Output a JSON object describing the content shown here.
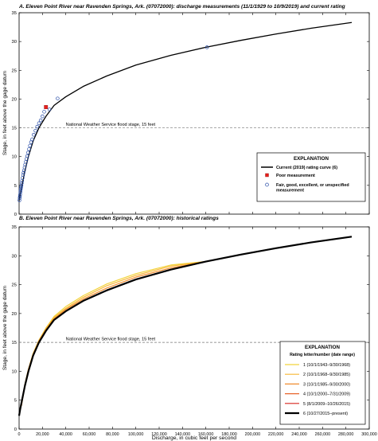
{
  "xlabel": "Discharge, in cubic feet per second",
  "ylabel": "Stage, in feet above the gage datum",
  "x_ticks": [
    0,
    20000,
    40000,
    60000,
    80000,
    100000,
    120000,
    140000,
    160000,
    180000,
    200000,
    220000,
    240000,
    260000,
    280000,
    300000
  ],
  "x_tick_labels": [
    "0",
    "20,000",
    "40,000",
    "60,000",
    "80,000",
    "100,000",
    "120,000",
    "140,000",
    "160,000",
    "180,000",
    "200,000",
    "220,000",
    "240,000",
    "260,000",
    "280,000",
    "300,000"
  ],
  "y_ticks": [
    0,
    5,
    10,
    15,
    20,
    25,
    30,
    35
  ],
  "y_tick_labels": [
    "0",
    "5",
    "10",
    "15",
    "20",
    "25",
    "30",
    "35"
  ],
  "chart_data": [
    {
      "type": "scatter",
      "title": "A. Eleven Point River near Ravenden Springs, Ark. (07072000): discharge measurements (11/1/1929 to 10/9/2019) and current rating",
      "xlabel": "",
      "ylabel": "Stage, in feet above the gage datum",
      "xlim": [
        0,
        300000
      ],
      "ylim": [
        0,
        35
      ],
      "grid": false,
      "legend_position": "lower-right",
      "legend_title": "EXPLANATION",
      "flood_stage": {
        "value": 15,
        "label": "National Weather Service flood stage, 15 feet"
      },
      "series": [
        {
          "name": "Current (2019) rating curve (6)",
          "kind": "line",
          "color": "#000000",
          "x": [
            0,
            1000,
            2500,
            5000,
            8000,
            12000,
            17000,
            23000,
            30000,
            40000,
            55000,
            75000,
            100000,
            130000,
            160000,
            190000,
            220000,
            250000,
            285000
          ],
          "y": [
            2.3,
            3.5,
            5,
            7.5,
            10,
            12.7,
            15,
            17,
            18.9,
            20.4,
            22.2,
            24,
            25.9,
            27.6,
            29,
            30.2,
            31.3,
            32.3,
            33.3
          ]
        },
        {
          "name": "Poor measurement",
          "kind": "point",
          "color": "#e8201c",
          "x": [
            23000
          ],
          "y": [
            18.6
          ]
        },
        {
          "name": "Fair, good, excellent, or unspecified measurement",
          "kind": "point",
          "color": "#2b4fa8",
          "x": [
            300,
            500,
            700,
            900,
            1100,
            1300,
            1500,
            1700,
            2000,
            2300,
            2600,
            3000,
            3400,
            3800,
            4200,
            4700,
            5200,
            5800,
            6400,
            7000,
            7700,
            8500,
            9300,
            10200,
            11200,
            12500,
            14000,
            15500,
            17000,
            18500,
            20000,
            21500,
            26000,
            33000,
            161000
          ],
          "y": [
            2.4,
            2.8,
            3.1,
            3.4,
            3.8,
            4.1,
            4.4,
            4.7,
            5.0,
            5.4,
            5.8,
            6.3,
            6.8,
            7.2,
            7.6,
            8.1,
            8.6,
            9.1,
            9.6,
            10.1,
            10.7,
            11.3,
            11.9,
            12.5,
            13.0,
            13.8,
            14.5,
            15.2,
            15.8,
            16.3,
            17.0,
            17.8,
            18.2,
            20.1,
            29.0
          ]
        }
      ]
    },
    {
      "type": "line",
      "title": "B. Eleven Point River near Ravenden Springs, Ark. (07072000): historical ratings",
      "xlabel": "Discharge, in cubic feet per second",
      "ylabel": "Stage, in feet above the gage datum",
      "xlim": [
        0,
        300000
      ],
      "ylim": [
        0,
        35
      ],
      "grid": false,
      "legend_position": "lower-right",
      "legend_title": "EXPLANATION",
      "legend_subtitle": "Rating letter/number (date range)",
      "flood_stage": {
        "value": 15,
        "label": "National Weather Service flood stage, 15 feet"
      },
      "series": [
        {
          "name": "1 (10/1/1943–9/30/1968)",
          "color": "#f2d43c",
          "width": 1.2,
          "x": [
            2000,
            5000,
            8000,
            12000,
            17000,
            23000,
            30000,
            40000,
            55000,
            75000,
            100000,
            130000,
            160000
          ],
          "y": [
            4.2,
            7.8,
            10.4,
            13.1,
            15.4,
            17.5,
            19.5,
            21.2,
            23.1,
            25.1,
            26.9,
            28.4,
            29.0
          ]
        },
        {
          "name": "2 (10/1/1968–9/30/1985)",
          "color": "#f7b733",
          "width": 1.2,
          "x": [
            2000,
            5000,
            8000,
            12000,
            17000,
            23000,
            30000,
            40000,
            55000,
            75000,
            100000,
            130000,
            160000
          ],
          "y": [
            4.1,
            7.7,
            10.3,
            13.0,
            15.3,
            17.4,
            19.3,
            20.9,
            22.8,
            24.8,
            26.6,
            28.2,
            29.0
          ]
        },
        {
          "name": "3 (10/1/1985–9/30/2000)",
          "color": "#f08c2e",
          "width": 1.2,
          "x": [
            2000,
            5000,
            8000,
            12000,
            17000,
            23000,
            30000,
            40000,
            55000,
            75000,
            100000,
            130000,
            160000
          ],
          "y": [
            4.0,
            7.6,
            10.2,
            12.9,
            15.2,
            17.2,
            19.1,
            20.7,
            22.5,
            24.4,
            26.3,
            27.9,
            29.0
          ]
        },
        {
          "name": "4 (10/1/2000–7/31/2009)",
          "color": "#e8642a",
          "width": 1.2,
          "x": [
            1000,
            2500,
            5000,
            8000,
            12000,
            17000,
            23000,
            30000
          ],
          "y": [
            3.6,
            5.2,
            7.7,
            10.3,
            12.9,
            15.2,
            17.1,
            19.0
          ]
        },
        {
          "name": "5 (8/1/2009–10/26/2015)",
          "color": "#d7261e",
          "width": 1.2,
          "x": [
            500,
            1000,
            2500,
            5000,
            8000,
            12000,
            17000,
            23000,
            30000
          ],
          "y": [
            2.9,
            3.6,
            5.1,
            7.6,
            10.1,
            12.8,
            15.1,
            17.0,
            18.9
          ]
        },
        {
          "name": "6 (10/27/2015–present)",
          "color": "#000000",
          "width": 2.2,
          "x": [
            0,
            1000,
            2500,
            5000,
            8000,
            12000,
            17000,
            23000,
            30000,
            40000,
            55000,
            75000,
            100000,
            130000,
            160000,
            190000,
            220000,
            250000,
            285000
          ],
          "y": [
            2.3,
            3.5,
            5,
            7.5,
            10,
            12.7,
            15,
            17,
            18.9,
            20.4,
            22.2,
            24,
            25.9,
            27.6,
            29,
            30.2,
            31.3,
            32.3,
            33.3
          ]
        }
      ]
    }
  ]
}
